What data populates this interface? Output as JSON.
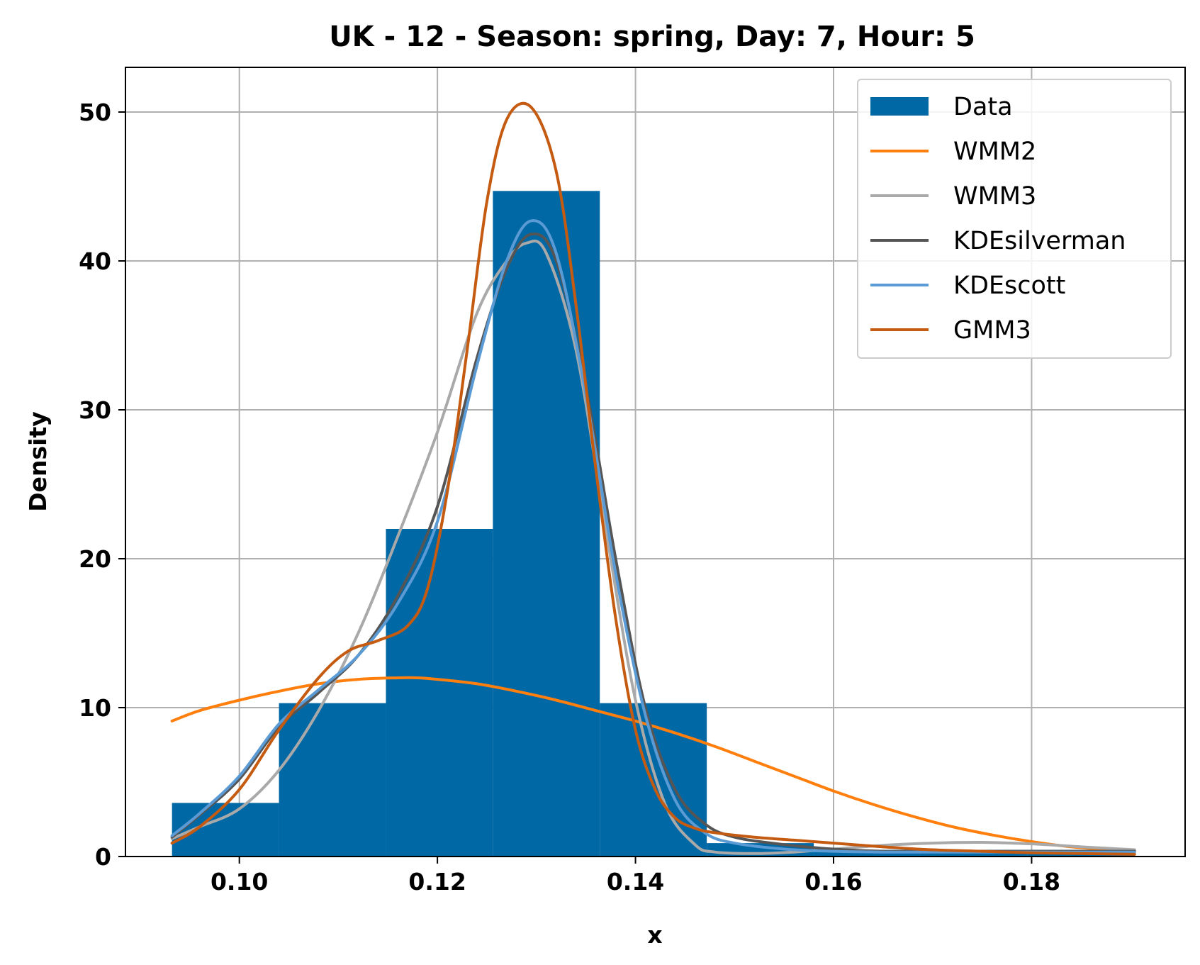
{
  "chart_data": {
    "type": "histogram",
    "title": "UK - 12 - Season: spring, Day: 7, Hour: 5",
    "xlabel": "x",
    "ylabel": "Density",
    "xlim": [
      0.0885,
      0.1955
    ],
    "ylim": [
      0,
      53
    ],
    "xticks": [
      0.1,
      0.12,
      0.14,
      0.16,
      0.18
    ],
    "xtick_labels": [
      "0.10",
      "0.12",
      "0.14",
      "0.16",
      "0.18"
    ],
    "yticks": [
      0,
      10,
      20,
      30,
      40,
      50
    ],
    "ytick_labels": [
      "0",
      "10",
      "20",
      "30",
      "40",
      "50"
    ],
    "grid": true,
    "legend_position": "top-right",
    "histogram": {
      "name": "Data",
      "color": "#0068a5",
      "bin_edges": [
        0.0932,
        0.104,
        0.1148,
        0.1256,
        0.1364,
        0.1472,
        0.158,
        0.1688,
        0.1796,
        0.1904
      ],
      "values": [
        3.6,
        10.3,
        22.0,
        44.7,
        10.3,
        0.9,
        0.45,
        0.45,
        0.45
      ]
    },
    "series": [
      {
        "name": "WMM2",
        "color": "#ff7f0e",
        "x": [
          0.0932,
          0.096,
          0.1,
          0.104,
          0.108,
          0.112,
          0.116,
          0.118,
          0.12,
          0.124,
          0.128,
          0.132,
          0.136,
          0.14,
          0.144,
          0.148,
          0.152,
          0.156,
          0.16,
          0.164,
          0.168,
          0.172,
          0.176,
          0.18,
          0.184,
          0.188,
          0.1904
        ],
        "y": [
          9.1,
          9.8,
          10.5,
          11.1,
          11.6,
          11.9,
          12.0,
          12.0,
          11.9,
          11.6,
          11.1,
          10.5,
          9.8,
          9.1,
          8.3,
          7.4,
          6.4,
          5.4,
          4.4,
          3.5,
          2.7,
          2.0,
          1.45,
          1.0,
          0.65,
          0.45,
          0.35
        ]
      },
      {
        "name": "WMM3",
        "color": "#a9a9a9",
        "x": [
          0.0932,
          0.096,
          0.1,
          0.104,
          0.108,
          0.112,
          0.116,
          0.12,
          0.124,
          0.127,
          0.129,
          0.131,
          0.134,
          0.137,
          0.14,
          0.143,
          0.146,
          0.148,
          0.152,
          0.156,
          0.16,
          0.165,
          0.17,
          0.175,
          0.18,
          0.185,
          0.1904
        ],
        "y": [
          1.2,
          2.0,
          3.2,
          5.8,
          9.8,
          15.0,
          21.5,
          28.5,
          36.5,
          40.0,
          41.2,
          40.5,
          34.0,
          22.0,
          10.5,
          3.5,
          0.8,
          0.3,
          0.2,
          0.3,
          0.5,
          0.75,
          0.9,
          0.95,
          0.85,
          0.65,
          0.45
        ]
      },
      {
        "name": "KDEsilverman",
        "color": "#555555",
        "x": [
          0.0932,
          0.096,
          0.1,
          0.104,
          0.108,
          0.112,
          0.116,
          0.12,
          0.124,
          0.127,
          0.1295,
          0.132,
          0.135,
          0.138,
          0.141,
          0.144,
          0.147,
          0.15,
          0.155,
          0.16,
          0.165,
          0.17,
          0.175,
          0.18,
          0.185,
          0.1904
        ],
        "y": [
          1.3,
          2.8,
          5.2,
          8.7,
          11.0,
          13.5,
          17.5,
          23.5,
          33.5,
          39.5,
          41.8,
          40.0,
          31.5,
          20.0,
          10.0,
          4.5,
          2.2,
          1.3,
          0.8,
          0.5,
          0.35,
          0.35,
          0.35,
          0.35,
          0.35,
          0.35
        ]
      },
      {
        "name": "KDEscott",
        "color": "#5b9bd5",
        "x": [
          0.0932,
          0.096,
          0.1,
          0.104,
          0.108,
          0.112,
          0.116,
          0.12,
          0.124,
          0.127,
          0.1295,
          0.132,
          0.135,
          0.138,
          0.141,
          0.144,
          0.147,
          0.15,
          0.155,
          0.16,
          0.165,
          0.17,
          0.175,
          0.18,
          0.185,
          0.1904
        ],
        "y": [
          1.4,
          2.9,
          5.4,
          8.9,
          11.2,
          13.5,
          17.0,
          22.5,
          33.0,
          40.0,
          42.7,
          40.5,
          31.0,
          19.0,
          9.5,
          3.8,
          1.6,
          0.9,
          0.5,
          0.35,
          0.3,
          0.3,
          0.3,
          0.3,
          0.3,
          0.3
        ]
      },
      {
        "name": "GMM3",
        "color": "#c55a11",
        "x": [
          0.0932,
          0.096,
          0.1,
          0.104,
          0.108,
          0.111,
          0.114,
          0.117,
          0.119,
          0.121,
          0.123,
          0.125,
          0.127,
          0.1295,
          0.132,
          0.134,
          0.136,
          0.138,
          0.14,
          0.142,
          0.144,
          0.146,
          0.148,
          0.152,
          0.156,
          0.16,
          0.165,
          0.17,
          0.175,
          0.18,
          0.185,
          0.1904
        ],
        "y": [
          0.9,
          2.0,
          4.5,
          8.5,
          12.0,
          13.8,
          14.5,
          15.5,
          18.0,
          24.5,
          34.0,
          44.0,
          49.5,
          50.3,
          46.0,
          37.0,
          26.0,
          16.0,
          8.5,
          4.5,
          2.6,
          1.9,
          1.6,
          1.3,
          1.1,
          0.9,
          0.65,
          0.45,
          0.35,
          0.25,
          0.2,
          0.15
        ]
      }
    ]
  }
}
